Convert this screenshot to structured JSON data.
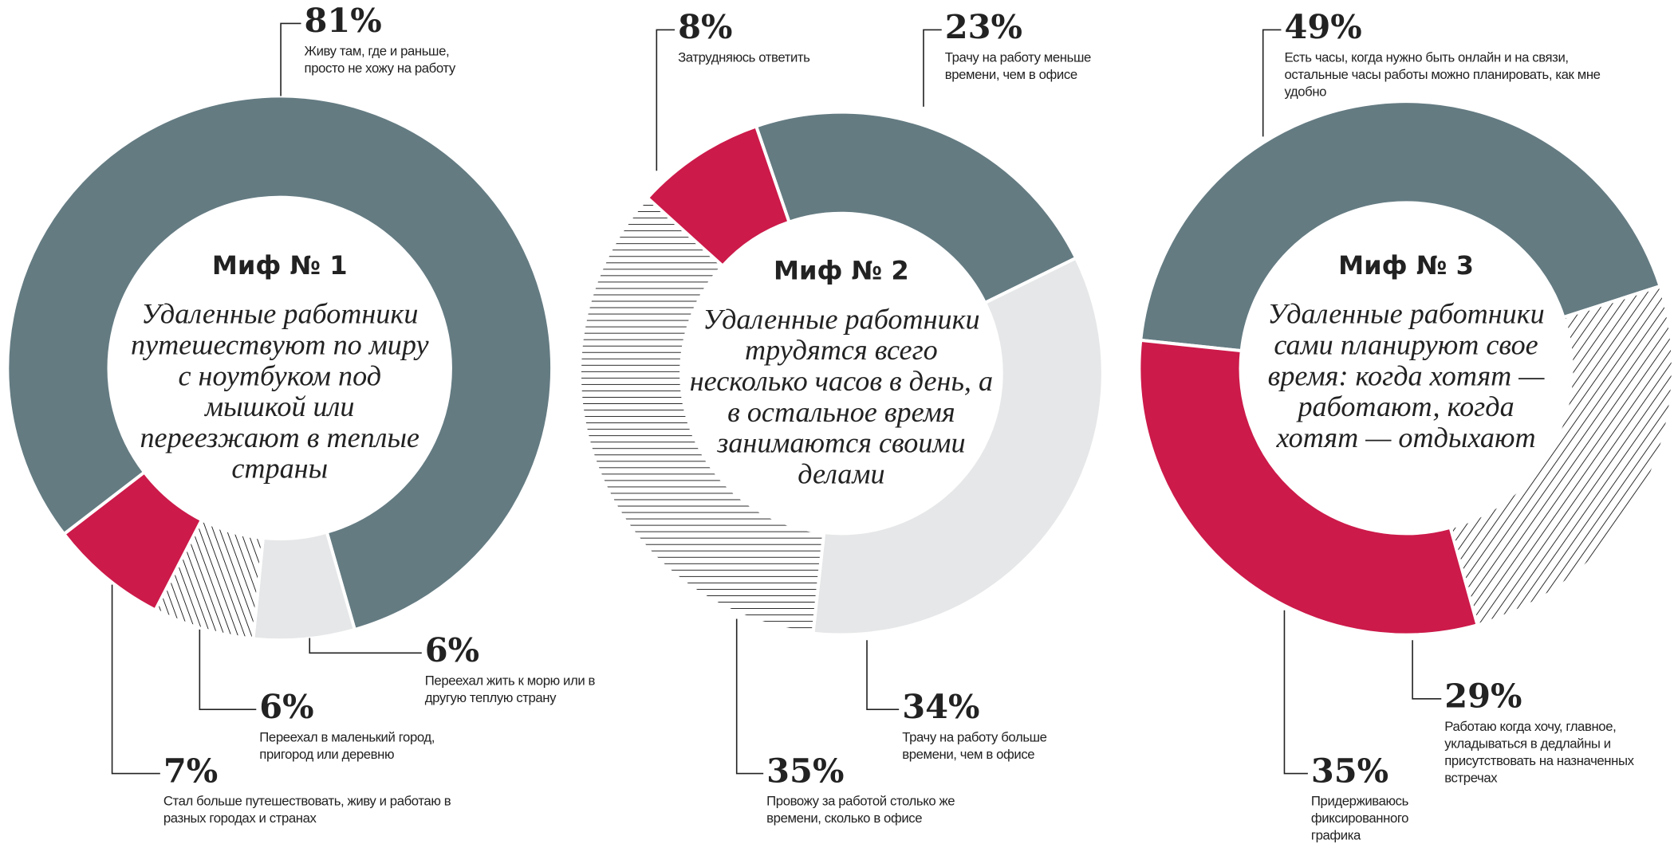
{
  "chart_data": [
    {
      "type": "pie",
      "title": "Миф № 1",
      "subtitle": "Удаленные работники путешествуют по миру с ноутбуком под мышкой или переезжают в теплые страны",
      "categories": [
        "Живу там, где и раньше, просто не хожу на работу",
        "Переехал жить к морю или в другую теплую страну",
        "Переехал в маленький город, пригород или деревню",
        "Стал больше путешествовать, живу и работаю в разных городах и странах"
      ],
      "values": [
        81,
        6,
        6,
        7
      ],
      "value_labels": [
        "81%",
        "6%",
        "6%",
        "7%"
      ],
      "colors": [
        "#647b82",
        "#e6e7e8",
        "#222222",
        "#cc1a4a"
      ],
      "hatched": [
        false,
        false,
        true,
        false
      ]
    },
    {
      "type": "pie",
      "title": "Миф № 2",
      "subtitle": "Удаленные работники трудятся всего несколько часов в день, а в остальное время занимаются своими делами",
      "categories": [
        "Трачу на работу меньше времени, чем в офисе",
        "Трачу на работу больше времени, чем в офисе",
        "Провожу за работой столько же времени, сколько в офисе",
        "Затрудняюсь ответить"
      ],
      "values": [
        23,
        34,
        35,
        8
      ],
      "value_labels": [
        "23%",
        "34%",
        "35%",
        "8%"
      ],
      "colors": [
        "#647b82",
        "#e6e7e8",
        "#222222",
        "#cc1a4a"
      ],
      "hatched": [
        false,
        false,
        true,
        false
      ]
    },
    {
      "type": "pie",
      "title": "Миф № 3",
      "subtitle": "Удаленные работники сами планируют свое время: когда хотят — работают, когда хотят — отдыхают",
      "categories": [
        "Есть часы, когда нужно быть онлайн и на связи, остальные часы работы можно планировать, как мне удобно",
        "Работаю когда хочу, главное, укладываться в дедлайны и присутствовать на назначенных встречах",
        "Придерживаюсь фиксированного графика"
      ],
      "values": [
        49,
        29,
        35
      ],
      "value_labels": [
        "49%",
        "29%",
        "35%"
      ],
      "colors": [
        "#647b82",
        "#222222",
        "#cc1a4a"
      ],
      "hatched": [
        false,
        true,
        false
      ]
    }
  ]
}
